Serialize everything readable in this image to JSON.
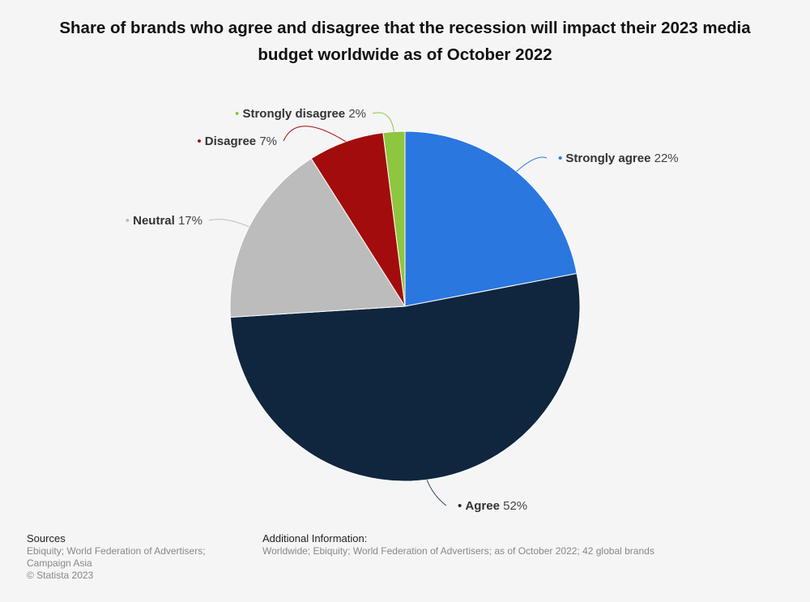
{
  "title": "Share of brands who agree and disagree that the recession will impact their 2023 media budget worldwide as of October 2022",
  "chart_data": {
    "type": "pie",
    "title": "Share of brands who agree and disagree that the recession will impact their 2023 media budget worldwide as of October 2022",
    "unit": "%",
    "slices": [
      {
        "name": "Strongly agree",
        "value": 22,
        "display": "22%",
        "color": "#2a77e0"
      },
      {
        "name": "Agree",
        "value": 52,
        "display": "52%",
        "color": "#10263e"
      },
      {
        "name": "Neutral",
        "value": 17,
        "display": "17%",
        "color": "#bcbcbc"
      },
      {
        "name": "Disagree",
        "value": 7,
        "display": "7%",
        "color": "#a30c0c"
      },
      {
        "name": "Strongly disagree",
        "value": 2,
        "display": "2%",
        "color": "#8ec63f"
      }
    ],
    "legend": "none",
    "labels": "outside-with-leader-lines"
  },
  "footer": {
    "sources_heading": "Sources",
    "sources_lines": [
      "Ebiquity; World Federation of Advertisers;",
      "Campaign Asia"
    ],
    "copyright": "© Statista 2023",
    "additional_heading": "Additional Information:",
    "additional_text": "Worldwide; Ebiquity; World Federation of Advertisers; as of October 2022; 42 global brands"
  }
}
